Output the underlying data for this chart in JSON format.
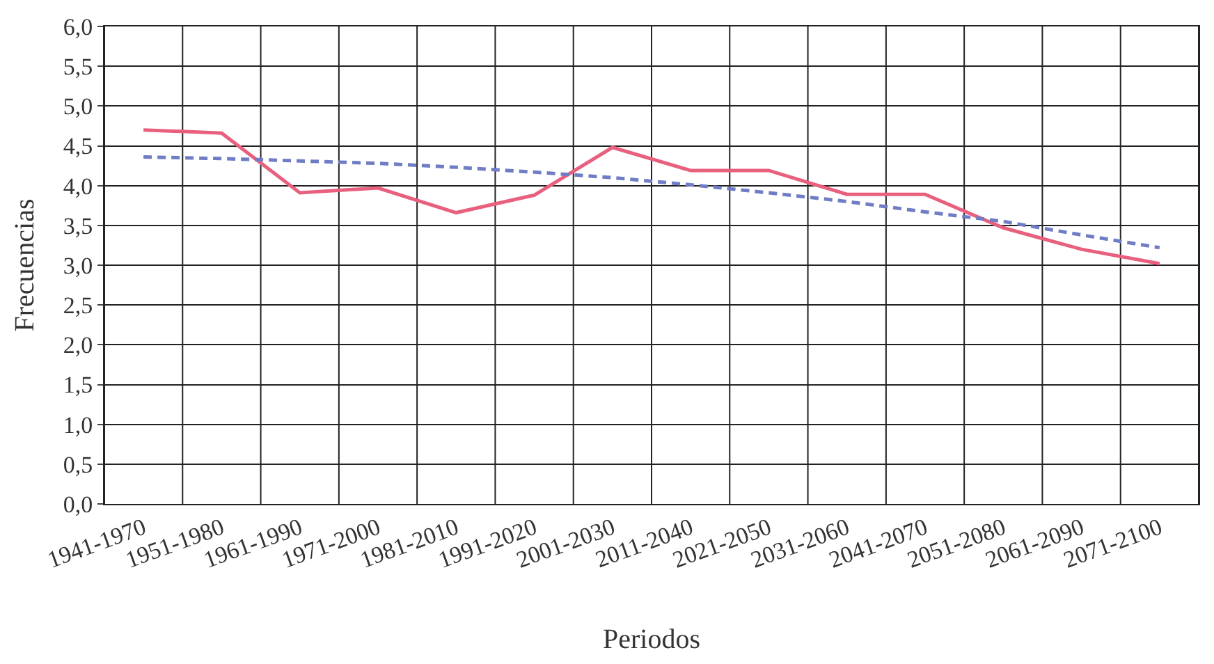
{
  "chart_data": {
    "type": "line",
    "xlabel": "Periodos",
    "ylabel": "Frecuencias",
    "categories": [
      "1941-1970",
      "1951-1980",
      "1961-1990",
      "1971-2000",
      "1981-2010",
      "1991-2020",
      "2001-2030",
      "2011-2040",
      "2021-2050",
      "2031-2060",
      "2041-2070",
      "2051-2080",
      "2061-2090",
      "2071-2100"
    ],
    "series": [
      {
        "color": "#e8607e",
        "line_style": "solid",
        "values": [
          4.7,
          4.66,
          3.91,
          3.97,
          3.66,
          3.88,
          4.48,
          4.19,
          4.19,
          3.89,
          3.89,
          3.47,
          3.2,
          3.02
        ]
      },
      {
        "color": "#6f7dc4",
        "line_style": "dashed",
        "values": [
          4.36,
          4.34,
          4.31,
          4.28,
          4.23,
          4.17,
          4.1,
          4.01,
          3.91,
          3.8,
          3.67,
          3.55,
          3.38,
          3.22
        ]
      }
    ],
    "ylim": [
      0,
      6
    ],
    "yticks": [
      {
        "value": 0,
        "label": "0,0"
      },
      {
        "value": 0.5,
        "label": "0,5"
      },
      {
        "value": 1,
        "label": "1,0"
      },
      {
        "value": 1.5,
        "label": "1,5"
      },
      {
        "value": 2,
        "label": "2,0"
      },
      {
        "value": 2.5,
        "label": "2,5"
      },
      {
        "value": 3,
        "label": "3,0"
      },
      {
        "value": 3.5,
        "label": "3,5"
      },
      {
        "value": 4,
        "label": "4,0"
      },
      {
        "value": 4.5,
        "label": "4,5"
      },
      {
        "value": 5,
        "label": "5,0"
      },
      {
        "value": 5.5,
        "label": "5,5"
      },
      {
        "value": 6,
        "label": "6,0"
      }
    ],
    "grid": true,
    "marker": "none"
  }
}
